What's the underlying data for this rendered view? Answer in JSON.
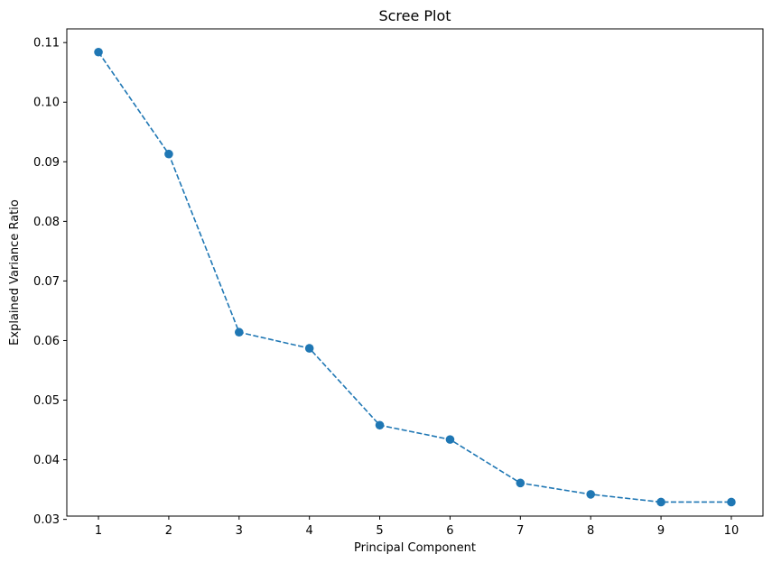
{
  "chart_data": {
    "type": "line",
    "title": "Scree Plot",
    "xlabel": "Principal Component",
    "ylabel": "Explained Variance Ratio",
    "x": [
      1,
      2,
      3,
      4,
      5,
      6,
      7,
      8,
      9,
      10
    ],
    "series": [
      {
        "values": [
          0.1084,
          0.0913,
          0.0614,
          0.0587,
          0.0458,
          0.0434,
          0.0361,
          0.0342,
          0.0329,
          0.0329
        ],
        "color": "#1f77b4",
        "line_style": "dashed",
        "marker": "circle"
      }
    ],
    "xticks": [
      1,
      2,
      3,
      4,
      5,
      6,
      7,
      8,
      9,
      10
    ],
    "xtick_labels": [
      "1",
      "2",
      "3",
      "4",
      "5",
      "6",
      "7",
      "8",
      "9",
      "10"
    ],
    "yticks": [
      0.03,
      0.04,
      0.05,
      0.06,
      0.07,
      0.08,
      0.09,
      0.1,
      0.11
    ],
    "ytick_labels": [
      "0.03",
      "0.04",
      "0.05",
      "0.06",
      "0.07",
      "0.08",
      "0.09",
      "0.10",
      "0.11"
    ],
    "xlim": [
      0.55,
      10.45
    ],
    "ylim": [
      0.03055,
      0.1123
    ],
    "grid": false
  }
}
